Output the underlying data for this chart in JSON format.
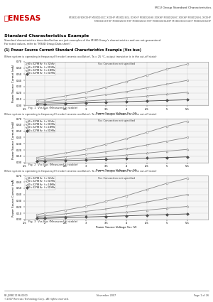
{
  "title_company": "RENESAS",
  "doc_title_right": "MCU Group Standard Characteristics",
  "doc_subtitle_right": "M38D26F8XXXHP M38D26GC XXXHP M38D26GL XXXHP M38D26H8 XXXHP M38D26HC XXXHP M38D26HL XXXHP\nM38D26H7HP M38D26HC7HP M38D26GC7HP M38D26H64HP M38D26GC64HP M38D26H4HP",
  "section_title": "Standard Characteristics Example",
  "section_desc": "Standard characteristics described below are just examples of the M38D Group's characteristics and are not guaranteed.\nFor rated values, refer to \"M38D Group Data sheet\".",
  "chart1_main_title": "(1) Power Source Current Standard Characteristics Example (Vss bus)",
  "chart1_subtitle": "When system is operating in frequency(f) mode (ceramic oscillator), Ta = 25 °C, output transistor is in the cut-off state)",
  "chart1_subtitle2": "Vcc Connection not specified",
  "chart1_xlabel": "Power Source Voltage Vcc (V)",
  "chart1_ylabel": "Power Source Current (mA)",
  "chart1_caption": "Fig. 1  Vss bus (Measured at stable)",
  "chart1_xlim": [
    1.5,
    6.0
  ],
  "chart1_ylim": [
    0.0,
    0.7
  ],
  "chart1_yticks": [
    0.0,
    0.1,
    0.2,
    0.3,
    0.4,
    0.5,
    0.6,
    0.7
  ],
  "chart1_xticks": [
    1.5,
    2.0,
    2.5,
    3.0,
    3.5,
    4.0,
    4.5,
    5.0,
    5.5
  ],
  "chart1_series": [
    {
      "label": "f0 = 32768 Hz   f = 32 kHz",
      "color": "#888888",
      "marker": "o",
      "x": [
        1.8,
        2.0,
        2.5,
        3.0,
        3.5,
        4.0,
        4.5,
        5.0,
        5.5
      ],
      "y": [
        0.08,
        0.1,
        0.15,
        0.21,
        0.29,
        0.38,
        0.48,
        0.58,
        0.66
      ]
    },
    {
      "label": "f0 = 32768 Hz   f = 01 MHz",
      "color": "#888888",
      "marker": "s",
      "x": [
        1.8,
        2.0,
        2.5,
        3.0,
        3.5,
        4.0,
        4.5,
        5.0,
        5.5
      ],
      "y": [
        0.05,
        0.06,
        0.09,
        0.13,
        0.17,
        0.22,
        0.28,
        0.34,
        0.4
      ]
    },
    {
      "label": "f0 = 32768 Hz   f = 4.0MHz",
      "color": "#888888",
      "marker": "^",
      "x": [
        1.8,
        2.0,
        2.5,
        3.0,
        3.5,
        4.0,
        4.5,
        5.0,
        5.5
      ],
      "y": [
        0.03,
        0.04,
        0.05,
        0.07,
        0.09,
        0.12,
        0.15,
        0.18,
        0.21
      ]
    },
    {
      "label": "f0 = 32768 Hz   f = 01 MHz",
      "color": "#444444",
      "marker": "D",
      "x": [
        1.8,
        2.0,
        2.5,
        3.0,
        3.5,
        4.0,
        4.5,
        5.0,
        5.5
      ],
      "y": [
        0.02,
        0.02,
        0.03,
        0.04,
        0.05,
        0.06,
        0.07,
        0.08,
        0.09
      ]
    }
  ],
  "chart2_subtitle": "When system is operating in frequency(f) mode (ceramic oscillator), Ta = 25 °C, output transistor is in the cut-off state)",
  "chart2_subtitle2": "Vcc Connection not specified",
  "chart2_xlabel": "Power Source Voltage Vcc (V)",
  "chart2_ylabel": "Power Source Current (mA)",
  "chart2_caption": "Fig. 2  Vcc bus (Measured at stable)",
  "chart2_xlim": [
    1.5,
    6.0
  ],
  "chart2_ylim": [
    0.0,
    0.7
  ],
  "chart2_yticks": [
    0.0,
    0.1,
    0.2,
    0.3,
    0.4,
    0.5,
    0.6,
    0.7
  ],
  "chart2_xticks": [
    1.5,
    2.0,
    2.5,
    3.0,
    3.5,
    4.0,
    4.5,
    5.0,
    5.5
  ],
  "chart2_series": [
    {
      "label": "f0 = 32768 Hz   f = 32 kHz",
      "color": "#888888",
      "marker": "o",
      "x": [
        1.8,
        2.0,
        2.5,
        3.0,
        3.5,
        4.0,
        4.5,
        5.0,
        5.5
      ],
      "y": [
        0.08,
        0.1,
        0.15,
        0.21,
        0.29,
        0.38,
        0.48,
        0.58,
        0.66
      ]
    },
    {
      "label": "f0 = 32768 Hz   f = 01 MHz",
      "color": "#888888",
      "marker": "s",
      "x": [
        1.8,
        2.0,
        2.5,
        3.0,
        3.5,
        4.0,
        4.5,
        5.0,
        5.5
      ],
      "y": [
        0.05,
        0.06,
        0.09,
        0.13,
        0.17,
        0.22,
        0.28,
        0.34,
        0.4
      ]
    },
    {
      "label": "f0 = 32768 Hz   f = 4.0MHz",
      "color": "#888888",
      "marker": "^",
      "x": [
        1.8,
        2.0,
        2.5,
        3.0,
        3.5,
        4.0,
        4.5,
        5.0,
        5.5
      ],
      "y": [
        0.03,
        0.04,
        0.05,
        0.07,
        0.09,
        0.12,
        0.15,
        0.18,
        0.21
      ]
    },
    {
      "label": "f0 = 32768 Hz   f = 01 MHz",
      "color": "#444444",
      "marker": "D",
      "x": [
        1.8,
        2.0,
        2.5,
        3.0,
        3.5,
        4.0,
        4.5,
        5.0,
        5.5
      ],
      "y": [
        0.02,
        0.02,
        0.03,
        0.04,
        0.05,
        0.06,
        0.07,
        0.08,
        0.09
      ]
    }
  ],
  "chart3_subtitle": "When system is operating in frequency(f) mode (ceramic oscillator), Ta = 25 °C, output transistor is in the cut-off state)",
  "chart3_subtitle2": "Vcc Connection not specified",
  "chart3_xlabel": "Power Source Voltage Vcc (V)",
  "chart3_ylabel": "Power Source Current (mA)",
  "chart3_caption": "Fig. 3  Vss bus (Measured at stable)",
  "chart3_xlim": [
    1.5,
    6.0
  ],
  "chart3_ylim": [
    0.0,
    0.7
  ],
  "chart3_yticks": [
    0.0,
    0.1,
    0.2,
    0.3,
    0.4,
    0.5,
    0.6,
    0.7
  ],
  "chart3_xticks": [
    1.5,
    2.0,
    2.5,
    3.0,
    3.5,
    4.0,
    4.5,
    5.0,
    5.5
  ],
  "chart3_series": [
    {
      "label": "f0 = 32768 Hz   f = 32 kHz",
      "color": "#888888",
      "marker": "o",
      "x": [
        1.8,
        2.0,
        2.5,
        3.0,
        3.5,
        4.0,
        4.5,
        5.0,
        5.5
      ],
      "y": [
        0.08,
        0.1,
        0.15,
        0.21,
        0.29,
        0.38,
        0.48,
        0.58,
        0.66
      ]
    },
    {
      "label": "f0 = 32768 Hz   f = 01 MHz",
      "color": "#888888",
      "marker": "s",
      "x": [
        1.8,
        2.0,
        2.5,
        3.0,
        3.5,
        4.0,
        4.5,
        5.0,
        5.5
      ],
      "y": [
        0.05,
        0.06,
        0.09,
        0.13,
        0.17,
        0.22,
        0.28,
        0.34,
        0.4
      ]
    },
    {
      "label": "f0 = 32768 Hz   f = 4.0MHz",
      "color": "#888888",
      "marker": "^",
      "x": [
        1.8,
        2.0,
        2.5,
        3.0,
        3.5,
        4.0,
        4.5,
        5.0,
        5.5
      ],
      "y": [
        0.03,
        0.04,
        0.05,
        0.07,
        0.09,
        0.12,
        0.15,
        0.18,
        0.21
      ]
    },
    {
      "label": "f0 = 32768 Hz   f = 01 MHz",
      "color": "#444444",
      "marker": "D",
      "x": [
        1.8,
        2.0,
        2.5,
        3.0,
        3.5,
        4.0,
        4.5,
        5.0,
        5.5
      ],
      "y": [
        0.02,
        0.02,
        0.03,
        0.04,
        0.05,
        0.06,
        0.07,
        0.08,
        0.09
      ]
    }
  ],
  "footer_left": "RE.J09B11196-0200\n©2007 Renesas Technology Corp., All rights reserved.",
  "footer_center": "November 2007",
  "footer_right": "Page 1 of 26",
  "bg_color": "#ffffff",
  "header_line_color": "#000080",
  "grid_color": "#bbbbbb"
}
